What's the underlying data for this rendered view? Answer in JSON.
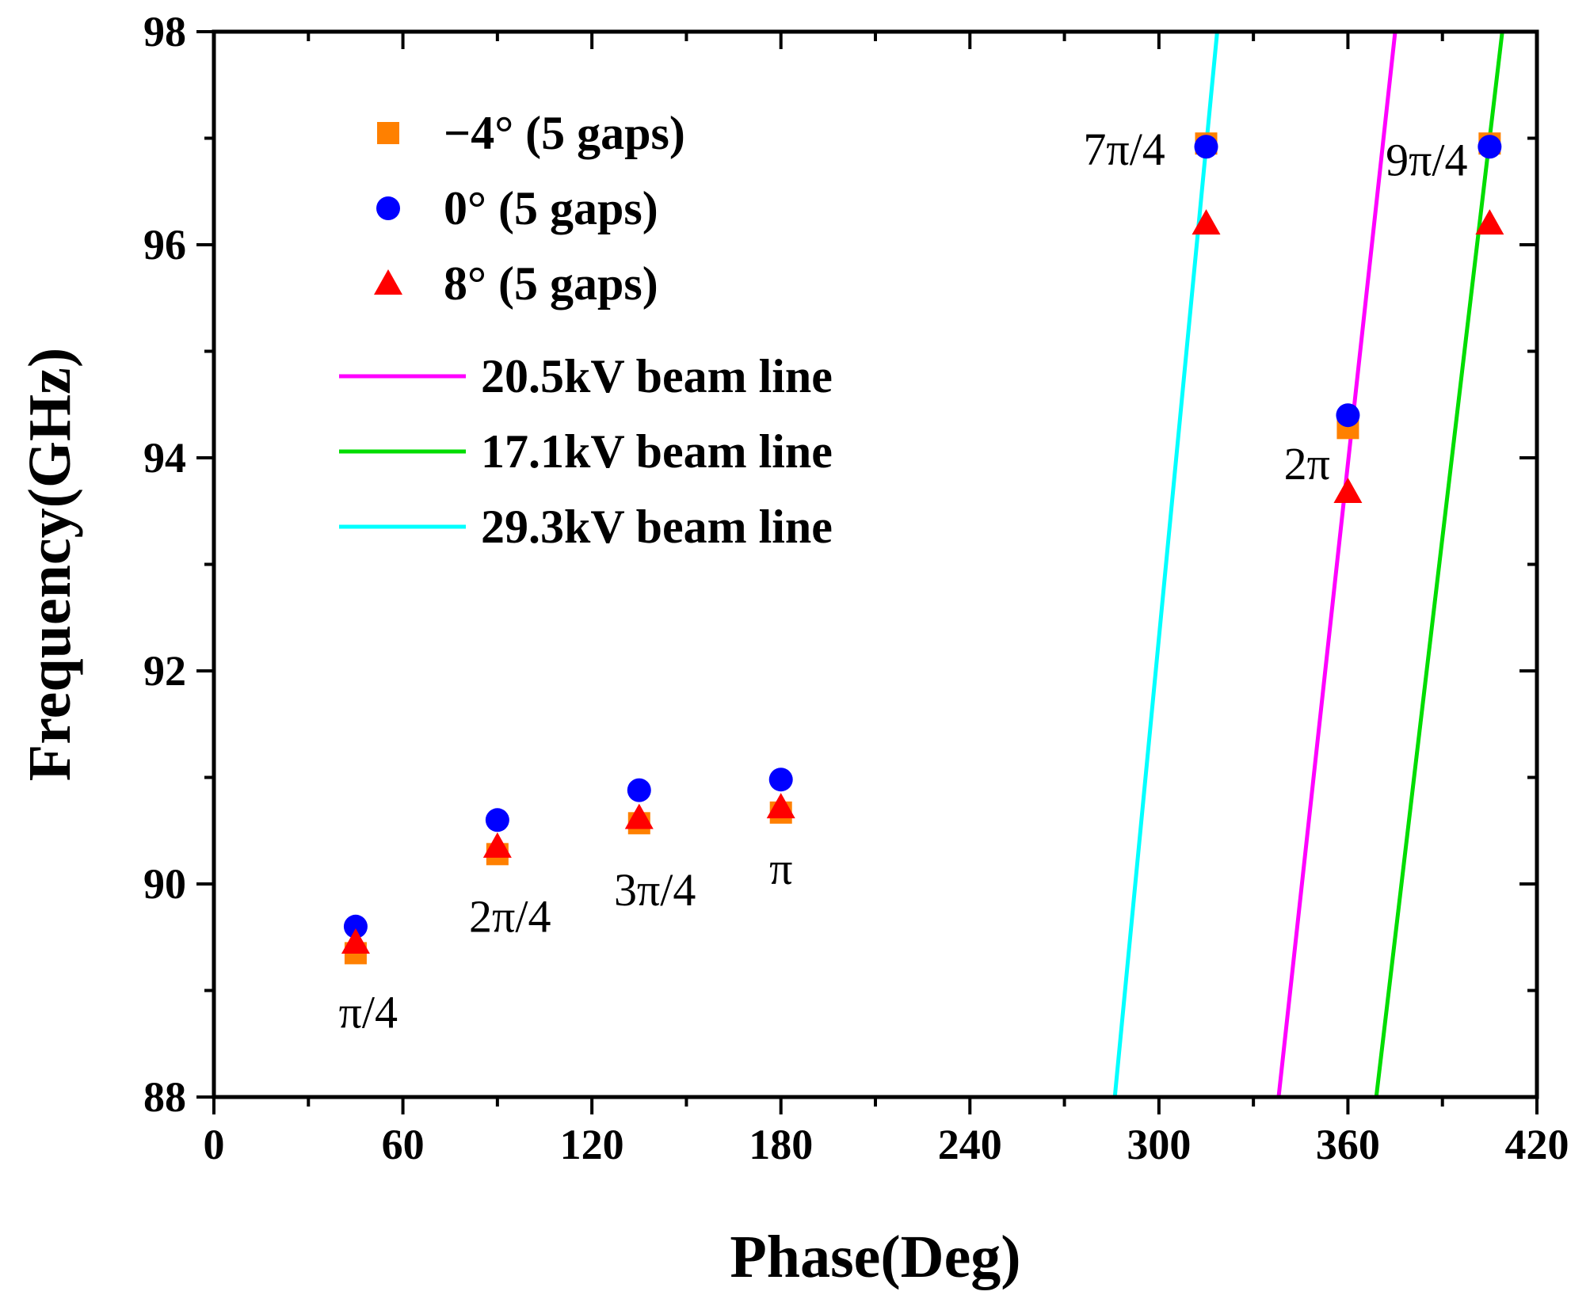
{
  "chart_data": {
    "type": "scatter",
    "title": "",
    "xlabel": "Phase(Deg)",
    "ylabel": "Frequency(GHz)",
    "xlim": [
      0,
      420
    ],
    "ylim": [
      88,
      98
    ],
    "xticks": [
      0,
      60,
      120,
      180,
      240,
      300,
      360,
      420
    ],
    "yticks": [
      88,
      90,
      92,
      94,
      96,
      98
    ],
    "x_tick_labels": [
      "0",
      "60",
      "120",
      "180",
      "240",
      "300",
      "360",
      "420"
    ],
    "y_tick_labels": [
      "88",
      "90",
      "92",
      "94",
      "96",
      "98"
    ],
    "grid": false,
    "legend_position": "top-left",
    "series": [
      {
        "name": "−4° (5 gaps)",
        "marker": "square",
        "color": "#ff8000",
        "x": [
          45,
          90,
          135,
          180,
          315,
          360,
          405
        ],
        "y": [
          89.35,
          90.28,
          90.57,
          90.67,
          96.95,
          94.28,
          96.95
        ]
      },
      {
        "name": "0°  (5 gaps)",
        "marker": "circle",
        "color": "#0000ff",
        "x": [
          45,
          90,
          135,
          180,
          315,
          360,
          405
        ],
        "y": [
          89.6,
          90.6,
          90.88,
          90.98,
          96.92,
          94.4,
          96.92
        ]
      },
      {
        "name": "8°  (5 gaps)",
        "marker": "triangle",
        "color": "#ff0000",
        "x": [
          45,
          90,
          135,
          180,
          315,
          360,
          405
        ],
        "y": [
          89.45,
          90.35,
          90.62,
          90.72,
          96.2,
          93.68,
          96.2
        ]
      }
    ],
    "lines": [
      {
        "name": "20.5kV beam line",
        "color": "#ff00ff",
        "x": [
          338,
          375
        ],
        "y": [
          88,
          98
        ]
      },
      {
        "name": "17.1kV beam line",
        "color": "#00dd00",
        "x": [
          369,
          409
        ],
        "y": [
          88,
          98
        ]
      },
      {
        "name": "29.3kV beam line",
        "color": "#00ffff",
        "x": [
          286,
          318.5
        ],
        "y": [
          88,
          98
        ]
      }
    ],
    "annotations": [
      {
        "text": "π/4",
        "x": 49,
        "y": 88.65
      },
      {
        "text": "2π/4",
        "x": 94,
        "y": 89.55
      },
      {
        "text": "3π/4",
        "x": 140,
        "y": 89.8
      },
      {
        "text": "π",
        "x": 180,
        "y": 90.0
      },
      {
        "text": "7π/4",
        "x": 289,
        "y": 96.75
      },
      {
        "text": "2π",
        "x": 347,
        "y": 93.8
      },
      {
        "text": "9π/4",
        "x": 385,
        "y": 96.65
      }
    ]
  }
}
